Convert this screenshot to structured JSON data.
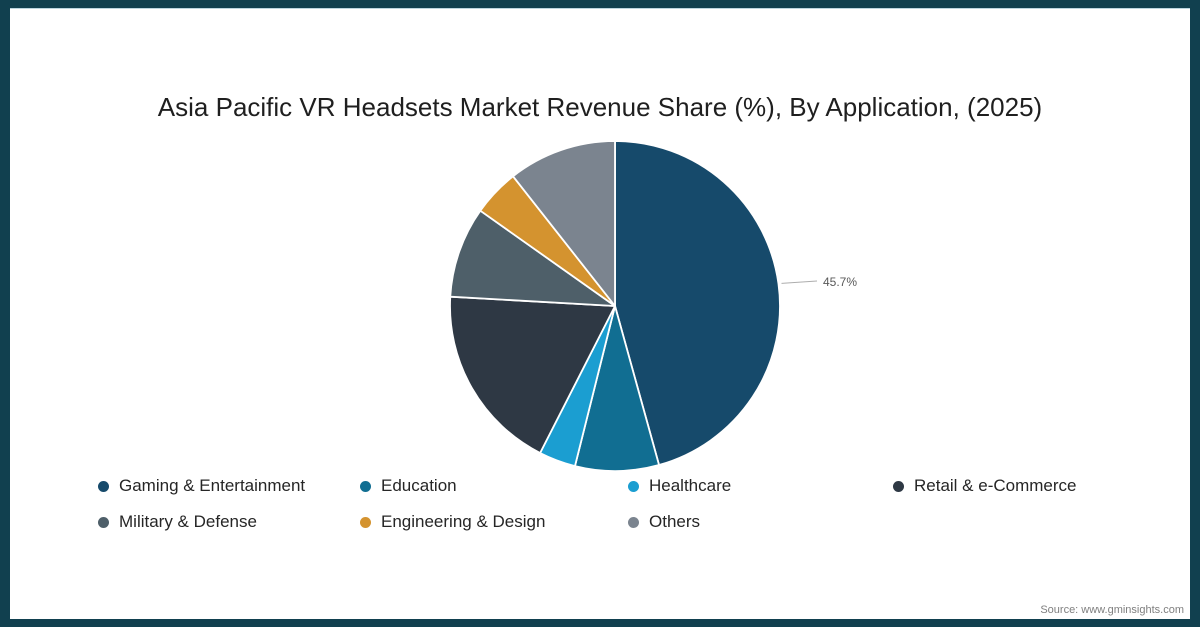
{
  "title": "Asia Pacific VR Headsets Market Revenue Share (%), By Application, (2025)",
  "source_note": "Source: www.gminsights.com",
  "frame": {
    "border_color": "#11404F",
    "accent_line_color": "#BCD6E0"
  },
  "chart_data": {
    "type": "pie",
    "title": "Asia Pacific VR Headsets Market Revenue Share (%), By Application, (2025)",
    "unit": "%",
    "start_angle_deg": 0,
    "direction": "clockwise",
    "legend_position": "bottom",
    "legend_rows": 2,
    "slices": [
      {
        "label": "Gaming & Entertainment",
        "value": 45.7,
        "color": "#164A6B",
        "data_label": "45.7%"
      },
      {
        "label": "Education",
        "value": 8.2,
        "color": "#116E92"
      },
      {
        "label": "Healthcare",
        "value": 3.6,
        "color": "#1B9ED1"
      },
      {
        "label": "Retail & e-Commerce",
        "value": 18.4,
        "color": "#2E3844"
      },
      {
        "label": "Military & Defense",
        "value": 8.9,
        "color": "#4E5F69"
      },
      {
        "label": "Engineering & Design",
        "value": 4.6,
        "color": "#D4932F"
      },
      {
        "label": "Others",
        "value": 10.6,
        "color": "#7B848F"
      }
    ],
    "leader_line_color": "#ADADAD",
    "data_label_color": "#595959"
  }
}
